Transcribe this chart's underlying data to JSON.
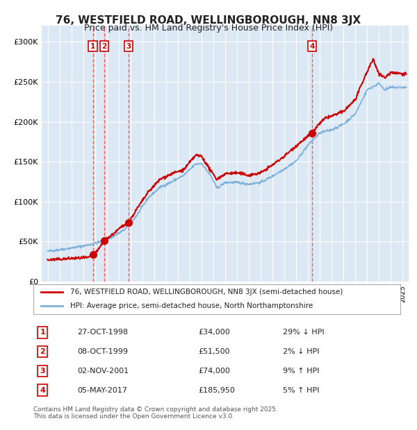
{
  "title": "76, WESTFIELD ROAD, WELLINGBOROUGH, NN8 3JX",
  "subtitle": "Price paid vs. HM Land Registry's House Price Index (HPI)",
  "title_fontsize": 11,
  "subtitle_fontsize": 9,
  "background_color": "#dce9f5",
  "plot_bg_color": "#dce9f5",
  "fig_bg_color": "#ffffff",
  "hpi_color": "#7fb0d8",
  "price_color": "#cc0000",
  "sale_marker_color": "#cc0000",
  "dashed_line_color": "#ff4444",
  "ylim": [
    0,
    320000
  ],
  "yticks": [
    0,
    50000,
    100000,
    150000,
    200000,
    250000,
    300000
  ],
  "ytick_labels": [
    "£0",
    "£50K",
    "£100K",
    "£150K",
    "£200K",
    "£250K",
    "£300K"
  ],
  "sales": [
    {
      "label": "1",
      "date": "1998-10-27",
      "price": 34000,
      "x": 1998.82,
      "hpi_rel": "29% ↓ HPI"
    },
    {
      "label": "2",
      "date": "1999-10-08",
      "price": 51500,
      "x": 1999.77,
      "hpi_rel": "2% ↓ HPI"
    },
    {
      "label": "3",
      "date": "2001-11-02",
      "price": 74000,
      "x": 2001.84,
      "hpi_rel": "9% ↑ HPI"
    },
    {
      "label": "4",
      "date": "2017-05-05",
      "price": 185950,
      "x": 2017.34,
      "hpi_rel": "5% ↑ HPI"
    }
  ],
  "sales_display": [
    {
      "num": "1",
      "date": "27-OCT-1998",
      "price": "£34,000",
      "rel": "29% ↓ HPI"
    },
    {
      "num": "2",
      "date": "08-OCT-1999",
      "price": "£51,500",
      "rel": "2% ↓ HPI"
    },
    {
      "num": "3",
      "date": "02-NOV-2001",
      "price": "£74,000",
      "rel": "9% ↑ HPI"
    },
    {
      "num": "4",
      "date": "05-MAY-2017",
      "price": "£185,950",
      "rel": "5% ↑ HPI"
    }
  ],
  "legend_line1": "76, WESTFIELD ROAD, WELLINGBOROUGH, NN8 3JX (semi-detached house)",
  "legend_line2": "HPI: Average price, semi-detached house, North Northamptonshire",
  "footer": "Contains HM Land Registry data © Crown copyright and database right 2025.\nThis data is licensed under the Open Government Licence v3.0.",
  "xmin": 1994.5,
  "xmax": 2025.5
}
